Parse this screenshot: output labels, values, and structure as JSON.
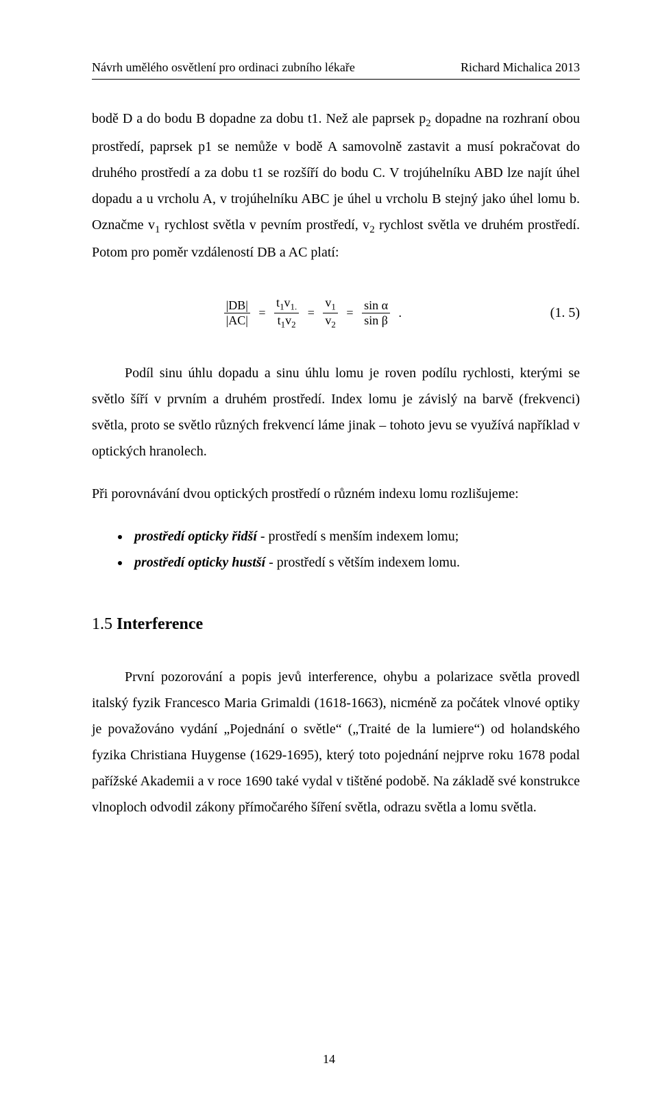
{
  "header": {
    "left": "Návrh umělého osvětlení pro ordinaci zubního lékaře",
    "right": "Richard Michalica   2013"
  },
  "para1_a": "bodě D a do bodu B dopadne za dobu t1. Než ale paprsek p",
  "para1_sub1": "2",
  "para1_b": " dopadne na rozhraní obou prostředí, paprsek p1 se nemůže v bodě A samovolně zastavit a musí pokračovat do druhého prostředí a za dobu t1 se rozšíří do bodu C. V trojúhelníku ABD lze najít úhel dopadu a u vrcholu A, v trojúhelníku ABC je úhel u vrcholu B stejný jako úhel lomu b. Označme v",
  "para1_sub2": "1",
  "para1_c": " rychlost světla v pevním prostředí, v",
  "para1_sub3": "2",
  "para1_d": " rychlost světla ve druhém prostředí. Potom pro poměr vzdáleností DB a AC platí:",
  "formula": {
    "f1_num": "|DB|",
    "f1_den": "|AC|",
    "f2_num_a": "t",
    "f2_num_a_sub": "1",
    "f2_num_b": "v",
    "f2_num_b_sub": "1.",
    "f2_den_a": "t",
    "f2_den_a_sub": "1",
    "f2_den_b": "v",
    "f2_den_b_sub": "2",
    "f3_num": "v",
    "f3_num_sub": "1",
    "f3_den": "v",
    "f3_den_sub": "2",
    "f4_num": "sin α",
    "f4_den": "sin β",
    "tail": " .",
    "eqnum": "(1. 5)"
  },
  "para2": "Podíl sinu úhlu dopadu a sinu úhlu lomu je roven podílu rychlosti, kterými se světlo šíří v prvním a druhém prostředí. Index lomu je závislý na barvě (frekvenci) světla, proto se světlo různých frekvencí láme jinak – tohoto jevu se využívá například v optických hranolech.",
  "para3": "Při porovnávání dvou optických prostředí o různém indexu lomu rozlišujeme:",
  "bullets": [
    {
      "term": "prostředí opticky řidší",
      "rest": " - prostředí s menším indexem lomu;"
    },
    {
      "term": "prostředí opticky hustší",
      "rest": " - prostředí s větším indexem lomu."
    }
  ],
  "section": {
    "num": "1.5",
    "title": "Interference"
  },
  "para4": "První pozorování a popis jevů interference, ohybu a polarizace světla provedl italský fyzik Francesco Maria Grimaldi (1618-1663), nicméně za počátek vlnové optiky je považováno vydání „Pojednání o světle“ („Traité de la lumiere“) od holandského fyzika Christiana Huygense (1629-1695), který toto pojednání nejprve roku 1678 podal pařížské Akademii a v roce 1690 také vydal v tištěné podobě. Na základě své konstrukce vlnoploch odvodil zákony přímočarého šíření světla, odrazu světla a lomu světla.",
  "pageNumber": "14"
}
